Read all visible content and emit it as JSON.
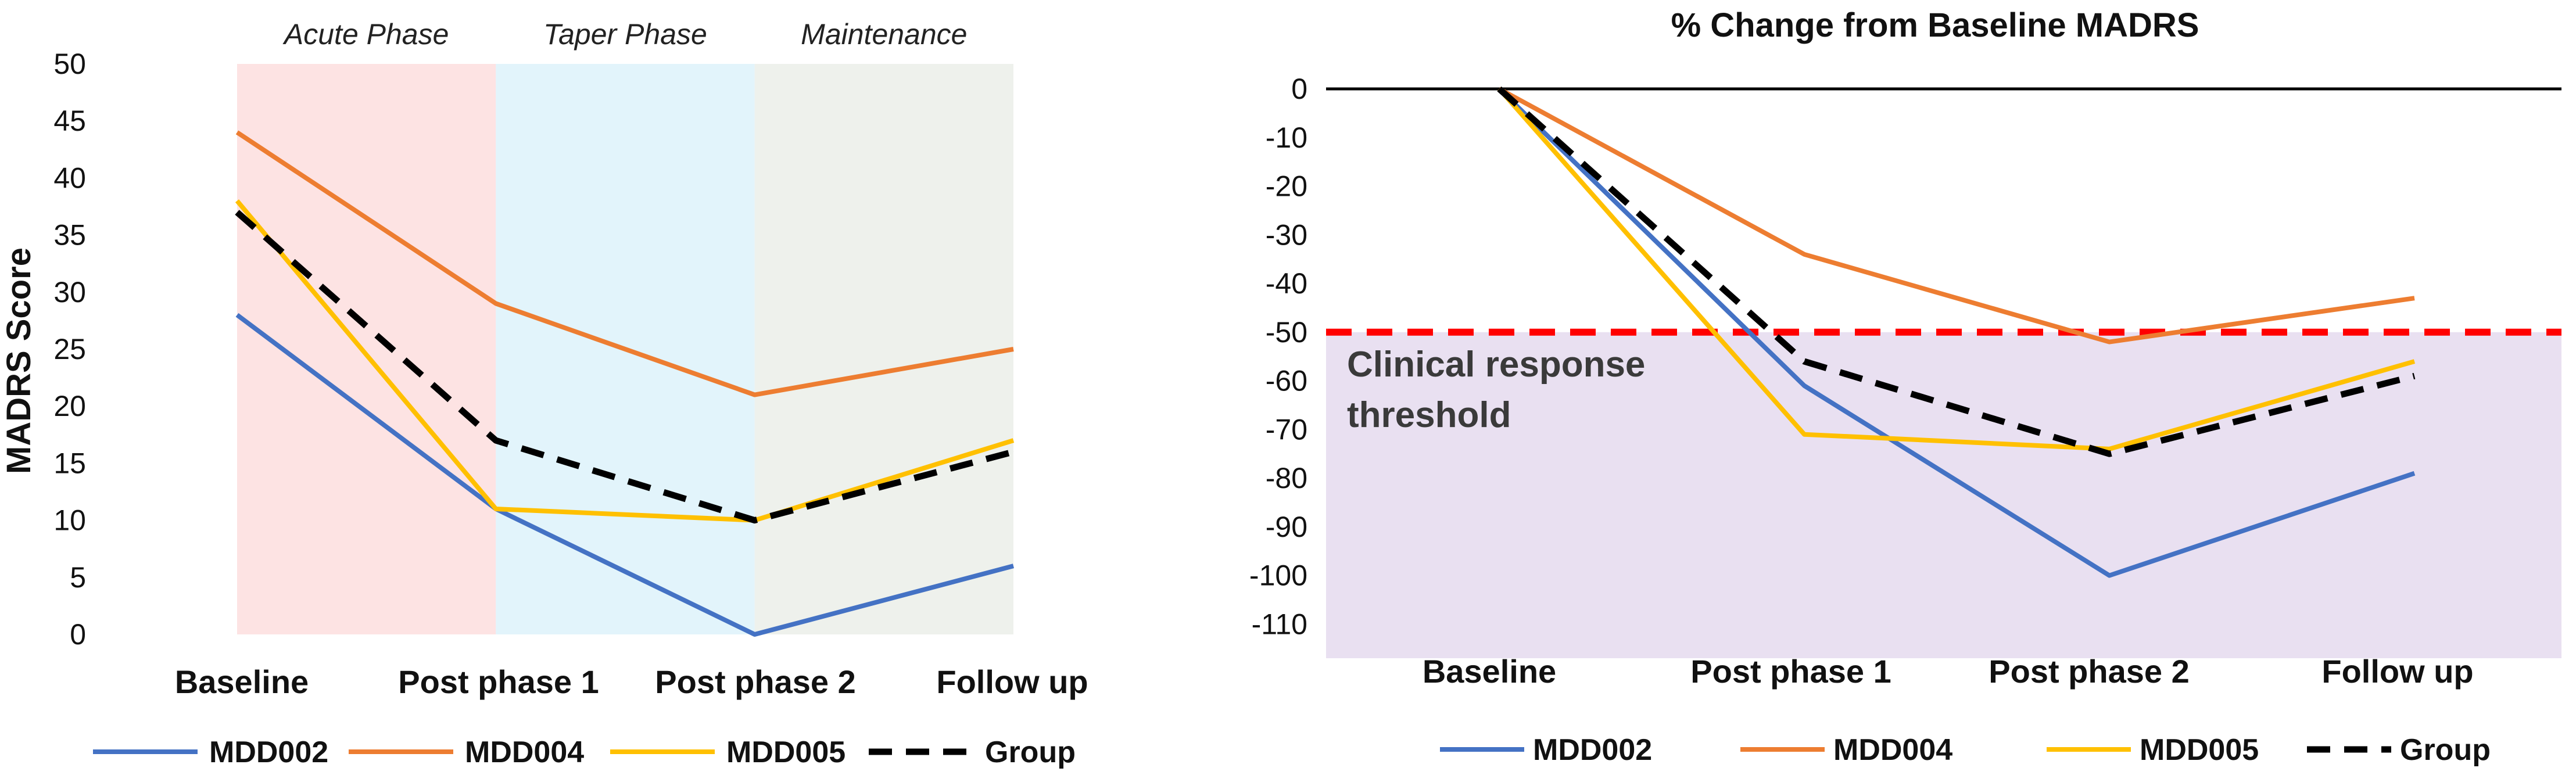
{
  "chart_data": [
    {
      "type": "line",
      "title": "",
      "xlabel": "",
      "ylabel": "MADRS Score",
      "ylim": [
        0,
        50
      ],
      "yticks": [
        "0",
        "5",
        "10",
        "15",
        "20",
        "25",
        "30",
        "35",
        "40",
        "45",
        "50"
      ],
      "categories": [
        "Baseline",
        "Post phase 1",
        "Post phase 2",
        "Follow up"
      ],
      "phases": [
        {
          "label": "Acute Phase",
          "color": "#fde3e3"
        },
        {
          "label": "Taper Phase",
          "color": "#e2f4fb"
        },
        {
          "label": "Maintenance",
          "color": "#eef1ec"
        }
      ],
      "series": [
        {
          "name": "MDD002",
          "color": "#4472c4",
          "dashed": false,
          "values": [
            28,
            11,
            0,
            6
          ]
        },
        {
          "name": "MDD004",
          "color": "#ed7d31",
          "dashed": false,
          "values": [
            44,
            29,
            21,
            25
          ]
        },
        {
          "name": "MDD005",
          "color": "#ffc000",
          "dashed": false,
          "values": [
            38,
            11,
            10,
            17
          ]
        },
        {
          "name": "Group",
          "color": "#000000",
          "dashed": true,
          "values": [
            37,
            17,
            10,
            16
          ]
        }
      ]
    },
    {
      "type": "line",
      "title": "% Change from Baseline MADRS",
      "xlabel": "",
      "ylabel": "",
      "ylim": [
        -117,
        0
      ],
      "yticks": [
        "0",
        "-10",
        "-20",
        "-30",
        "-40",
        "-50",
        "-60",
        "-70",
        "-80",
        "-90",
        "-100",
        "-110"
      ],
      "categories": [
        "Baseline",
        "Post phase 1",
        "Post phase 2",
        "Follow up"
      ],
      "threshold": {
        "value": -50,
        "color": "#ff0000",
        "region_color": "#e9e0f1"
      },
      "annotation": [
        "Clinical response",
        "threshold"
      ],
      "series": [
        {
          "name": "MDD002",
          "color": "#4472c4",
          "dashed": false,
          "values": [
            0,
            -61,
            -100,
            -79
          ]
        },
        {
          "name": "MDD004",
          "color": "#ed7d31",
          "dashed": false,
          "values": [
            0,
            -34,
            -52,
            -43
          ]
        },
        {
          "name": "MDD005",
          "color": "#ffc000",
          "dashed": false,
          "values": [
            0,
            -71,
            -74,
            -56
          ]
        },
        {
          "name": "Group",
          "color": "#000000",
          "dashed": true,
          "values": [
            0,
            -56,
            -75,
            -59
          ]
        }
      ]
    }
  ]
}
